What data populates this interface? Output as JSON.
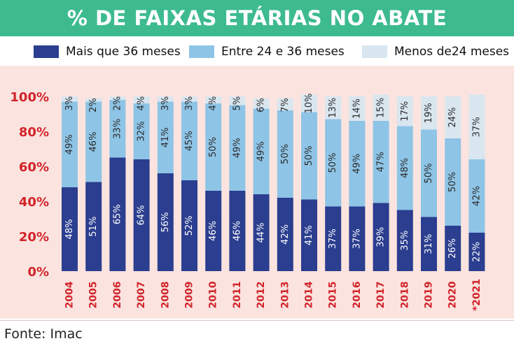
{
  "title": "% DE FAIXAS ETÁRIAS NO ABATE",
  "source": "Fonte: Imac",
  "colors": {
    "title_bg": "#3dbb8f",
    "plot_bg": "#fbe4df",
    "series_old": "#2b3e8f",
    "series_mid": "#8ec4e6",
    "series_young": "#d9e6f0",
    "axis_label": "#d2232a"
  },
  "chart_data": {
    "type": "bar",
    "stacked": true,
    "title": "% DE FAIXAS ETÁRIAS NO ABATE",
    "xlabel": "",
    "ylabel": "",
    "ylim": [
      0,
      100
    ],
    "y_ticks": [
      "0%",
      "20%",
      "40%",
      "60%",
      "80%",
      "100%"
    ],
    "categories": [
      "2004",
      "2005",
      "2006",
      "2007",
      "2008",
      "2009",
      "2010",
      "2011",
      "2012",
      "2013",
      "2014",
      "2015",
      "2016",
      "2017",
      "2018",
      "2019",
      "2020",
      "*2021"
    ],
    "legend_position": "top",
    "series": [
      {
        "name": "Mais que 36 meses",
        "color": "#2b3e8f",
        "values": [
          48,
          51,
          65,
          64,
          56,
          52,
          46,
          46,
          44,
          42,
          41,
          37,
          37,
          39,
          35,
          31,
          26,
          22
        ],
        "labels": [
          "48%",
          "51%",
          "65%",
          "64%",
          "56%",
          "52%",
          "46%",
          "46%",
          "44%",
          "42%",
          "41%",
          "37%",
          "37%",
          "39%",
          "35%",
          "31%",
          "26%",
          "22%"
        ]
      },
      {
        "name": "Entre 24 e 36 meses",
        "color": "#8ec4e6",
        "values": [
          49,
          46,
          33,
          32,
          41,
          45,
          50,
          49,
          49,
          50,
          50,
          50,
          49,
          47,
          48,
          50,
          50,
          42
        ],
        "labels": [
          "49%",
          "46%",
          "33%",
          "32%",
          "41%",
          "45%",
          "50%",
          "49%",
          "49%",
          "50%",
          "50%",
          "50%",
          "49%",
          "47%",
          "48%",
          "50%",
          "50%",
          "42%"
        ]
      },
      {
        "name": "Menos de24 meses",
        "color": "#d9e6f0",
        "values": [
          3,
          2,
          2,
          4,
          3,
          3,
          4,
          5,
          6,
          7,
          10,
          13,
          14,
          15,
          17,
          19,
          24,
          37
        ],
        "labels": [
          "3%",
          "2%",
          "2%",
          "4%",
          "3%",
          "3%",
          "4%",
          "5%",
          "6%",
          "7%",
          "10%",
          "13%",
          "14%",
          "15%",
          "17%",
          "19%",
          "24%",
          "37%"
        ]
      }
    ]
  }
}
